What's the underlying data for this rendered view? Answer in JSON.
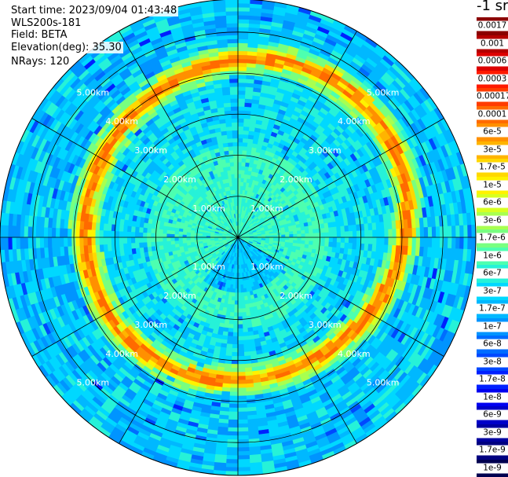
{
  "header": {
    "start_time": "Start time: 2023/09/04 01:43:48",
    "instrument": "WLS200s-181",
    "field": "Field: BETA",
    "elevation": "Elevation(deg): 35.30",
    "nrays": "NRays: 120"
  },
  "colorbar": {
    "title": "-1 sr",
    "levels": [
      {
        "label": "0.0017",
        "color": "#8b0000"
      },
      {
        "label": "0.001",
        "color": "#b40000"
      },
      {
        "label": "0.0006",
        "color": "#dc0000"
      },
      {
        "label": "0.0003",
        "color": "#ff1a00"
      },
      {
        "label": "0.00017",
        "color": "#ff3c00"
      },
      {
        "label": "0.0001",
        "color": "#ff6a00"
      },
      {
        "label": "6e-5",
        "color": "#ff9000"
      },
      {
        "label": "3e-5",
        "color": "#ffb400"
      },
      {
        "label": "1.7e-5",
        "color": "#ffd800"
      },
      {
        "label": "1e-5",
        "color": "#fff200"
      },
      {
        "label": "6e-6",
        "color": "#d8ff20"
      },
      {
        "label": "3e-6",
        "color": "#a8ff50"
      },
      {
        "label": "1.7e-6",
        "color": "#78ff80"
      },
      {
        "label": "1e-6",
        "color": "#4dffb0"
      },
      {
        "label": "6e-7",
        "color": "#26f2d8"
      },
      {
        "label": "3e-7",
        "color": "#00d8ff"
      },
      {
        "label": "1.7e-7",
        "color": "#00b8ff"
      },
      {
        "label": "1e-7",
        "color": "#0094ff"
      },
      {
        "label": "6e-8",
        "color": "#006cff"
      },
      {
        "label": "3e-8",
        "color": "#0048ff"
      },
      {
        "label": "1.7e-8",
        "color": "#0020ff"
      },
      {
        "label": "1e-8",
        "color": "#0000f0"
      },
      {
        "label": "6e-9",
        "color": "#0000c8"
      },
      {
        "label": "3e-9",
        "color": "#0000a0"
      },
      {
        "label": "1.7e-9",
        "color": "#000080"
      },
      {
        "label": "1e-9",
        "color": "#000050"
      }
    ]
  },
  "chart_data": {
    "type": "heatmap",
    "title": "",
    "field": "BETA",
    "units": "-1 sr",
    "elevation_deg": 35.3,
    "nrays": 120,
    "range_rings_km": [
      1.0,
      2.0,
      3.0,
      4.0,
      5.0
    ],
    "ring_labels": [
      "1.00km",
      "2.00km",
      "3.00km",
      "4.00km",
      "5.00km"
    ],
    "radial_lines_deg": [
      0,
      30,
      60,
      90,
      120,
      150,
      180,
      210,
      240,
      270,
      300,
      330
    ],
    "max_range_km": 5.8,
    "aerosol_layer": {
      "range_km": [
        3.5,
        4.6
      ],
      "peak_value": "3e-5",
      "background_value": "3e-7",
      "description_values": [
        "1e-7",
        "3e-7",
        "1.7e-6",
        "1.7e-5",
        "6e-5"
      ]
    }
  }
}
